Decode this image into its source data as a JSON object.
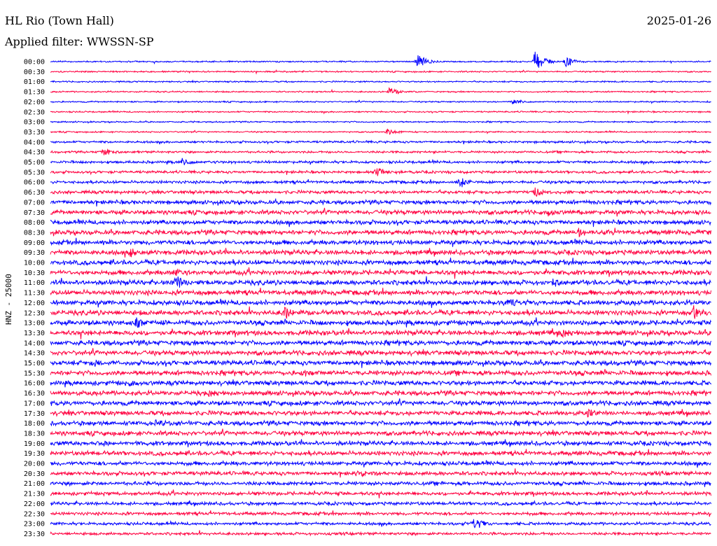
{
  "header": {
    "station": "HL Rio (Town Hall)",
    "date": "2025-01-26",
    "filter_label": "Applied filter: WWSSN-SP",
    "channel_label": "HNZ - 25000"
  },
  "chart_data": {
    "type": "line",
    "title": "HL Rio (Town Hall)",
    "subtitle": "Applied filter: WWSSN-SP",
    "ylabel": "HNZ - 25000",
    "y_tick_labels": [
      "00:00",
      "00:30",
      "01:00",
      "01:30",
      "02:00",
      "02:30",
      "03:00",
      "03:30",
      "04:00",
      "04:30",
      "05:00",
      "05:30",
      "06:00",
      "06:30",
      "07:00",
      "07:30",
      "08:00",
      "08:30",
      "09:00",
      "09:30",
      "10:00",
      "10:30",
      "11:00",
      "11:30",
      "12:00",
      "12:30",
      "13:00",
      "13:30",
      "14:00",
      "14:30",
      "15:00",
      "15:30",
      "16:00",
      "16:30",
      "17:00",
      "17:30",
      "18:00",
      "18:30",
      "19:00",
      "19:30",
      "20:00",
      "20:30",
      "21:00",
      "21:30",
      "22:00",
      "22:30",
      "23:00",
      "23:30"
    ],
    "trace_colors": [
      "#0000ff",
      "#ff0040"
    ],
    "grid": false,
    "row_noise_amplitude": [
      1,
      1,
      1,
      1,
      1,
      1,
      1,
      1,
      1.5,
      1.5,
      1.8,
      1.8,
      2,
      2.2,
      2.8,
      3,
      3,
      3.2,
      3.2,
      3.3,
      3.3,
      3.3,
      3.4,
      3.4,
      3.4,
      3.4,
      3.4,
      3.4,
      3.3,
      3.3,
      3.3,
      3.3,
      3.2,
      3.2,
      3.2,
      3.1,
      3.1,
      3.1,
      3,
      3,
      2.8,
      2.7,
      2.6,
      2.5,
      2.3,
      2.2,
      2,
      1.9
    ],
    "bursts": [
      {
        "row": 0,
        "minute": 16.6,
        "amplitude": 14
      },
      {
        "row": 0,
        "minute": 22.0,
        "amplitude": 16
      },
      {
        "row": 0,
        "minute": 23.4,
        "amplitude": 9
      },
      {
        "row": 3,
        "minute": 15.4,
        "amplitude": 7
      },
      {
        "row": 4,
        "minute": 21.0,
        "amplitude": 6
      },
      {
        "row": 7,
        "minute": 15.3,
        "amplitude": 6
      },
      {
        "row": 9,
        "minute": 2.4,
        "amplitude": 7
      },
      {
        "row": 10,
        "minute": 6.0,
        "amplitude": 8
      },
      {
        "row": 11,
        "minute": 14.8,
        "amplitude": 8
      },
      {
        "row": 12,
        "minute": 18.6,
        "amplitude": 9
      },
      {
        "row": 13,
        "minute": 22.0,
        "amplitude": 9
      },
      {
        "row": 15,
        "minute": 22.6,
        "amplitude": 8
      },
      {
        "row": 17,
        "minute": 24.0,
        "amplitude": 9
      },
      {
        "row": 19,
        "minute": 3.6,
        "amplitude": 9
      },
      {
        "row": 21,
        "minute": 5.6,
        "amplitude": 8
      },
      {
        "row": 22,
        "minute": 5.7,
        "amplitude": 12
      },
      {
        "row": 22,
        "minute": 22.8,
        "amplitude": 8
      },
      {
        "row": 24,
        "minute": 20.8,
        "amplitude": 10
      },
      {
        "row": 25,
        "minute": 10.6,
        "amplitude": 12
      },
      {
        "row": 25,
        "minute": 29.2,
        "amplitude": 14
      },
      {
        "row": 26,
        "minute": 3.9,
        "amplitude": 10
      },
      {
        "row": 27,
        "minute": 23.2,
        "amplitude": 9
      },
      {
        "row": 30,
        "minute": 2.0,
        "amplitude": 8
      },
      {
        "row": 31,
        "minute": 11.4,
        "amplitude": 9
      },
      {
        "row": 32,
        "minute": 3.6,
        "amplitude": 7
      },
      {
        "row": 33,
        "minute": 7.2,
        "amplitude": 7
      },
      {
        "row": 35,
        "minute": 24.4,
        "amplitude": 8
      },
      {
        "row": 36,
        "minute": 4.8,
        "amplitude": 7
      },
      {
        "row": 38,
        "minute": 2.4,
        "amplitude": 7
      },
      {
        "row": 41,
        "minute": 14.0,
        "amplitude": 7
      },
      {
        "row": 46,
        "minute": 19.2,
        "amplitude": 13
      }
    ]
  }
}
